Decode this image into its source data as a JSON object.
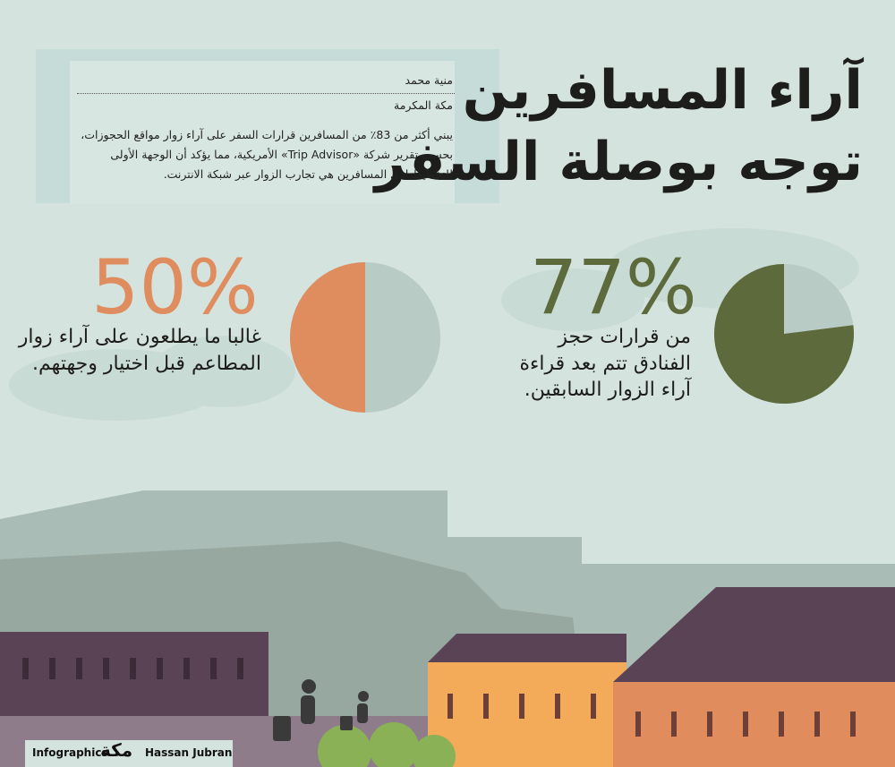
{
  "header": {
    "title_lines": [
      "آراء المسافرين",
      "توجه بوصلة السفر"
    ]
  },
  "byline": {
    "author": "منية محمد",
    "location": "مكة المكرمة",
    "intro": "يبني أكثر من 83٪ من المسافرين قرارات السفر على آراء زوار مواقع الحجوزات، بحسب تقرير شركة «Trip Advisor» الأمريكية، مما يؤكد أن الوجهة الأولى للتخطيط لدى المسافرين هي تجارب الزوار عبر شبكة الانترنت."
  },
  "stats": [
    {
      "value": 77,
      "value_label": "77%",
      "text": "من قرارات حجز الفنادق تتم بعد قراءة آراء الزوار السابقين.",
      "color": "#5d6a3c"
    },
    {
      "value": 50,
      "value_label": "50%",
      "text": "غالبا ما يطلعون على آراء زوار المطاعم قبل اختيار وجهتهم.",
      "color": "#df8d5f"
    }
  ],
  "footer": {
    "left": "Infographics",
    "logo": "مكة",
    "credit": "Hassan Jubran"
  }
}
